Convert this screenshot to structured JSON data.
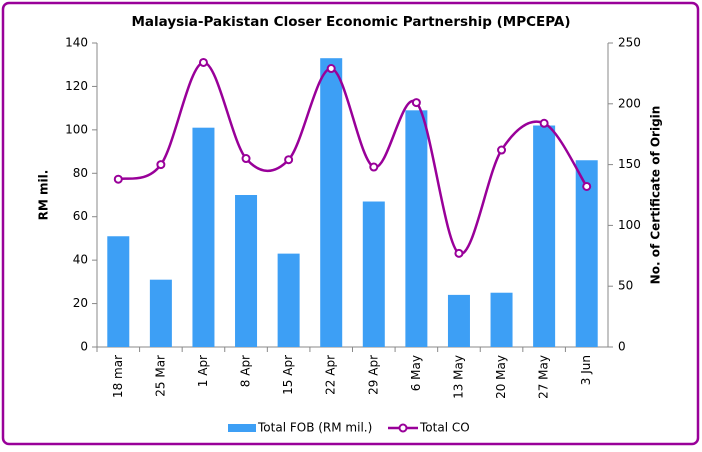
{
  "chart_data": {
    "type": "bar_line",
    "title": "Malaysia-Pakistan Closer Economic Partnership (MPCEPA)",
    "ylabel": "RM mil.",
    "y2label": "No. of Certificate of Origin",
    "categories": [
      "18 mar",
      "25 Mar",
      "1 Apr",
      "8 Apr",
      "15 Apr",
      "22 Apr",
      "29 Apr",
      "6 May",
      "13 May",
      "20 May",
      "27 May",
      "3 Jun"
    ],
    "series": [
      {
        "name": "Total FOB (RM mil.)",
        "type": "bar",
        "color": "#3d9ff5",
        "values": [
          51,
          31,
          101,
          70,
          43,
          133,
          67,
          109,
          24,
          25,
          102,
          86
        ]
      },
      {
        "name": "Total CO",
        "type": "line",
        "axis": "y2",
        "color": "#990099",
        "values": [
          138,
          150,
          234,
          155,
          154,
          229,
          148,
          201,
          77,
          162,
          184,
          132
        ]
      }
    ],
    "ylim": [
      0,
      140
    ],
    "yticks": [
      0,
      20,
      40,
      60,
      80,
      100,
      120,
      140
    ],
    "y2lim": [
      0,
      250
    ],
    "y2ticks": [
      0,
      50,
      100,
      150,
      200,
      250
    ],
    "legend": "bottom"
  }
}
